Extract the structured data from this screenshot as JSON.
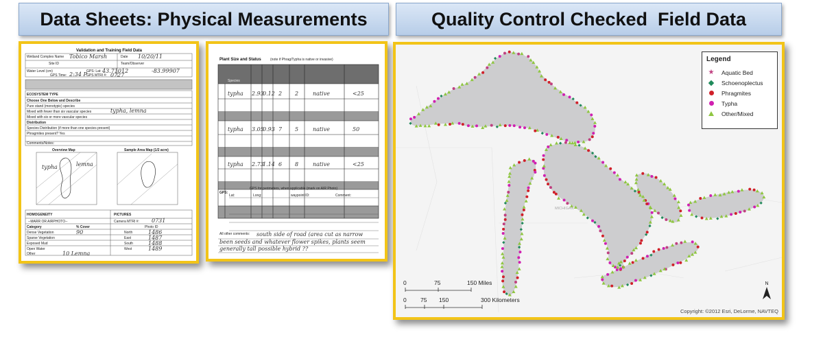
{
  "headers": {
    "left": "Data Sheets: Physical Measurements",
    "right": "Quality Control Checked  Field Data"
  },
  "sheet1": {
    "title": "Validation and Training Field Data",
    "wetland_label": "Wetland Complex Name",
    "wetland_value": "Tobico Marsh",
    "date_label": "Date",
    "date_value": "10/20/11",
    "site_label": "Site ID",
    "team_label": "Team/Observer",
    "water_label": "Water Level (cm)",
    "gps_label": "GPS: Lat:",
    "gps_lat": "43.71012",
    "gps_long": "-83.99907",
    "gps_time_label": "GPS Time:",
    "gps_time_value": "2:34 P",
    "mtri_label": "GPS MTRI #:",
    "mtri_value": "0727",
    "ecosystem_label": "ECOSYSTEM TYPE",
    "choose_label": "Choose One Below and Describe",
    "pure_stand": "Pure stand (monotypic) species",
    "mixed_few": "Mixed with fewer than six vascular species",
    "mixed_six": "Mixed with six or more vascular species",
    "distribution_label": "Distribution",
    "species_dist": "Species Distribution (if more than one species present)",
    "phragmites_present": "Phragmites present? Yes",
    "comments_label": "Comments/Notes:",
    "overview_map": "Overview Map",
    "sample_area_map": "Sample Area Map (1/2 acre)",
    "homogeneity": "HOMOGENEITY",
    "marr": "--MARR OR AIRPHOTO--",
    "category_label": "Category",
    "cover_label": "% Cover",
    "dense_veg": "Dense Vegetation",
    "dense_veg_value": "90",
    "sparse_veg": "Sparse Vegetation",
    "exposed_mud": "Exposed Mud",
    "open_water": "Open Water",
    "other_label": "Other",
    "other_value": "10 Lemna",
    "pictures_label": "PICTURES",
    "camera_label": "Camera MTRI #:",
    "camera_value": "0731",
    "photo_label": "Photo ID",
    "north_label": "North",
    "north_value": "1486",
    "east_label": "East",
    "east_value": "1487",
    "south_label": "South",
    "south_value": "1488",
    "west_label": "West",
    "west_value": "1489",
    "hand_typha": "typha",
    "hand_lemna": "lemna",
    "hand_typha_lemna": "typha, lemna"
  },
  "sheet2": {
    "title": "Plant Size and Status",
    "note": "(note if Phrag/Typha is native or invasive)",
    "col_species": "Species",
    "rows": [
      {
        "species": "typha",
        "v1": "2.93",
        "v2": "0.12",
        "v3": "2",
        "v4": "2",
        "status": "native",
        "pct": "<25"
      },
      {
        "species": "typha",
        "v1": "3.05",
        "v2": "0.93",
        "v3": "7",
        "v4": "5",
        "status": "native",
        "pct": "50"
      },
      {
        "species": "typha",
        "v1": "2.73",
        "v2": "1.14",
        "v3": "6",
        "v4": "8",
        "status": "native",
        "pct": "<25"
      }
    ],
    "gps_perimeter": "GPS for perimeters, when applicable (mark on AIR Photo)",
    "gps_label": "GPS:",
    "lat_label": "Lat:",
    "long_label": "Long:",
    "waypoint_label": "waypoint ID:",
    "comment_label": "Comment:",
    "all_other_comments": "All other comments:",
    "hand_comment_1": "south side of road (area cut as narrow",
    "hand_comment_2": "been seeds and whatever flower spikes, plants seem",
    "hand_comment_3": "generally tall    possible hybrid ??"
  },
  "map": {
    "legend_title": "Legend",
    "legend_items": [
      {
        "label": "Aquatic Bed",
        "symbol": "star",
        "color": "#c04080"
      },
      {
        "label": "Schoenoplectus",
        "symbol": "diamond",
        "color": "#1f8a5a"
      },
      {
        "label": "Phragmites",
        "symbol": "dot",
        "color": "#d0202a"
      },
      {
        "label": "Typha",
        "symbol": "dot",
        "color": "#d020b0"
      },
      {
        "label": "Other/Mixed",
        "symbol": "triangle",
        "color": "#8fc641"
      }
    ],
    "scale_miles": [
      "0",
      "75",
      "150 Miles"
    ],
    "scale_km": [
      "0",
      "75",
      "150",
      "300 Kilometers"
    ],
    "north": "N",
    "place_michigan": "MICHIGAN",
    "copyright": "Copyright: ©2012 Esri, DeLorme, NAVTEQ",
    "land_color": "#f4f4f4",
    "water_color": "#cdcdcf"
  }
}
